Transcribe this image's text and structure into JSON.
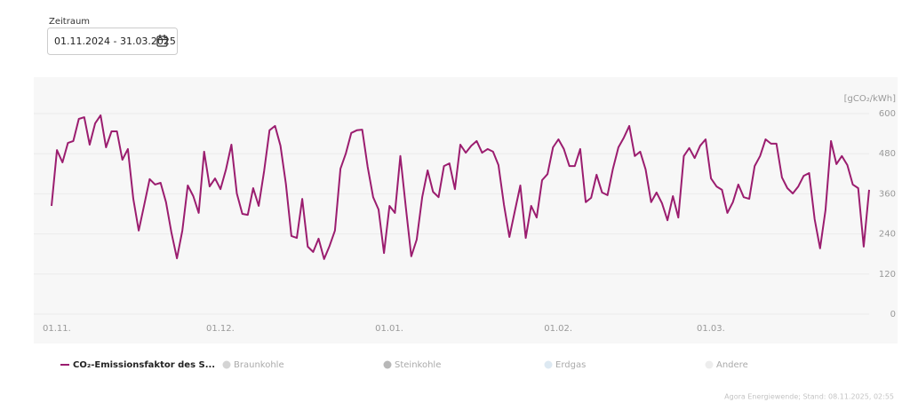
{
  "filter": {
    "label": "Zeitraum",
    "value": "01.11.2024 - 31.03.2025"
  },
  "chart_data": {
    "type": "line",
    "y_unit_label": "[gCO₂/kWh]",
    "categories": [
      "01.11.",
      null,
      null,
      null,
      null,
      null,
      null,
      null,
      null,
      null,
      null,
      null,
      null,
      null,
      null,
      null,
      null,
      null,
      null,
      null,
      null,
      null,
      null,
      null,
      null,
      null,
      null,
      null,
      null,
      null,
      "01.12.",
      null,
      null,
      null,
      null,
      null,
      null,
      null,
      null,
      null,
      null,
      null,
      null,
      null,
      null,
      null,
      null,
      null,
      null,
      null,
      null,
      null,
      null,
      null,
      null,
      null,
      null,
      null,
      null,
      null,
      null,
      "01.01.",
      null,
      null,
      null,
      null,
      null,
      null,
      null,
      null,
      null,
      null,
      null,
      null,
      null,
      null,
      null,
      null,
      null,
      null,
      null,
      null,
      null,
      null,
      null,
      null,
      null,
      null,
      null,
      null,
      null,
      null,
      "01.02.",
      null,
      null,
      null,
      null,
      null,
      null,
      null,
      null,
      null,
      null,
      null,
      null,
      null,
      null,
      null,
      null,
      null,
      null,
      null,
      null,
      null,
      null,
      null,
      null,
      null,
      null,
      null,
      "01.03.",
      null,
      null,
      null,
      null,
      null,
      null,
      null,
      null,
      null,
      null,
      null,
      null,
      null,
      null,
      null,
      null,
      null,
      null,
      null,
      null,
      null,
      null,
      null,
      null,
      null,
      null,
      null,
      null,
      null,
      null
    ],
    "series": [
      {
        "name": "CO₂-Emissionsfaktor des S...",
        "color": "#9b1d6f",
        "values": [
          324,
          491,
          454,
          512,
          518,
          584,
          589,
          507,
          571,
          595,
          499,
          547,
          547,
          462,
          494,
          345,
          250,
          327,
          404,
          388,
          393,
          335,
          244,
          167,
          250,
          385,
          353,
          303,
          486,
          382,
          406,
          374,
          433,
          507,
          361,
          300,
          297,
          377,
          324,
          428,
          550,
          563,
          504,
          390,
          234,
          228,
          345,
          202,
          186,
          226,
          165,
          204,
          250,
          435,
          481,
          542,
          550,
          552,
          441,
          350,
          313,
          183,
          324,
          303,
          473,
          319,
          173,
          223,
          350,
          430,
          366,
          350,
          443,
          451,
          374,
          507,
          483,
          504,
          518,
          483,
          494,
          486,
          446,
          327,
          231,
          308,
          385,
          228,
          324,
          289,
          401,
          419,
          499,
          523,
          494,
          443,
          443,
          494,
          335,
          348,
          417,
          364,
          356,
          435,
          499,
          528,
          563,
          473,
          486,
          433,
          335,
          364,
          332,
          281,
          353,
          289,
          473,
          497,
          467,
          504,
          523,
          406,
          382,
          372,
          303,
          335,
          388,
          350,
          345,
          443,
          473,
          523,
          510,
          510,
          409,
          377,
          361,
          382,
          414,
          422,
          284,
          197,
          311,
          518,
          449,
          473,
          446,
          388,
          377,
          202,
          372
        ]
      }
    ],
    "inactive_legend": [
      {
        "name": "Braunkohle",
        "color": "#d4d4d4"
      },
      {
        "name": "Steinkohle",
        "color": "#b8b8b8"
      },
      {
        "name": "Erdgas",
        "color": "#dde9f2"
      },
      {
        "name": "Andere",
        "color": "#ededed"
      }
    ],
    "ylim": [
      0,
      600
    ],
    "yticks": [
      0,
      120,
      240,
      360,
      480,
      600
    ],
    "grid": true,
    "source": "Agora Energiewende; Stand: 08.11.2025, 02:55"
  }
}
